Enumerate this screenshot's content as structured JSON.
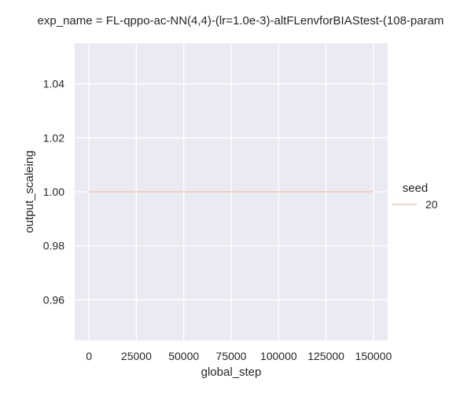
{
  "chart_data": {
    "type": "line",
    "title": "exp_name = FL-qppo-ac-NN(4,4)-(lr=1.0e-3)-altFLenvforBIAStest-(108-param",
    "xlabel": "global_step",
    "ylabel": "output_scaleing",
    "xlim": [
      -7500,
      157500
    ],
    "ylim": [
      0.945,
      1.055
    ],
    "x_ticks": [
      0,
      25000,
      50000,
      75000,
      100000,
      125000,
      150000
    ],
    "y_ticks": [
      0.96,
      0.98,
      1.0,
      1.02,
      1.04
    ],
    "x_tick_labels": [
      "0",
      "25000",
      "50000",
      "75000",
      "100000",
      "125000",
      "150000"
    ],
    "y_tick_labels": [
      "0.96",
      "0.98",
      "1.00",
      "1.02",
      "1.04"
    ],
    "grid": true,
    "legend": {
      "title": "seed",
      "placement": "right",
      "entries": [
        {
          "label": "20",
          "color": "#f4c4bd"
        }
      ]
    },
    "series": [
      {
        "name": "20",
        "color": "#f4c4bd",
        "x": [
          0,
          150000
        ],
        "y": [
          1.0,
          1.0
        ]
      }
    ],
    "colors": {
      "plot_background": "#eaeaf2",
      "grid": "#ffffff",
      "text": "#262626"
    }
  }
}
